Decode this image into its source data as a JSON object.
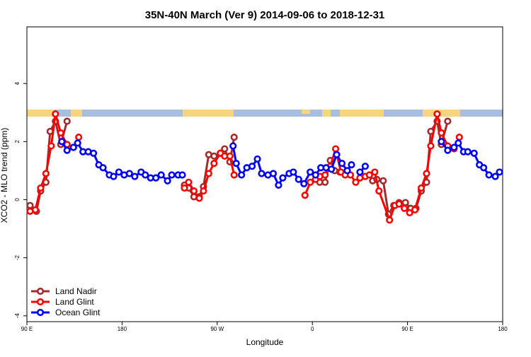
{
  "chart_data": {
    "type": "line",
    "title": "35N-40N March (Ver 9)   2014-09-06 to 2018-12-31",
    "xlabel": "Longitude",
    "ylabel": "XCO2 - MLO trend (ppm)",
    "xlim": [
      90,
      540
    ],
    "xticks": [
      {
        "value": 90,
        "label": "90 E"
      },
      {
        "value": 180,
        "label": "180"
      },
      {
        "value": 270,
        "label": "90 W"
      },
      {
        "value": 360,
        "label": "0"
      },
      {
        "value": 450,
        "label": "90 E"
      },
      {
        "value": 540,
        "label": "180"
      }
    ],
    "ylim": [
      -4.2,
      5.95
    ],
    "yticks": [
      -4,
      -2,
      0,
      2,
      4
    ],
    "legend": "lower left",
    "series": [
      {
        "name": "Land Nadir",
        "color": "#a52a2a",
        "x": [
          93,
          99,
          103,
          108,
          112,
          117,
          122,
          128,
          null,
          239,
          243,
          248,
          253,
          257,
          262,
          267,
          273,
          277,
          282,
          286,
          null,
          367,
          372,
          377,
          381,
          386,
          null,
          417,
          421,
          427,
          432,
          437,
          442,
          448,
          453,
          458,
          463,
          468,
          472,
          478,
          482,
          488
        ],
        "values": [
          -0.2,
          -0.4,
          0.3,
          0.6,
          2.35,
          2.7,
          1.9,
          2.7,
          null,
          0.5,
          0.4,
          0.1,
          0.1,
          0.45,
          1.55,
          1.5,
          1.6,
          1.75,
          1.3,
          2.15,
          null,
          0.6,
          0.6,
          1.35,
          1.0,
          0.95,
          null,
          0.65,
          0.7,
          0.65,
          -0.5,
          -0.2,
          -0.1,
          -0.1,
          -0.3,
          -0.3,
          0.3,
          0.6,
          2.35,
          2.7,
          1.9,
          2.7
        ]
      },
      {
        "name": "Land Glint",
        "color": "#ff0000",
        "x": [
          93,
          98,
          103,
          108,
          113,
          117,
          122,
          128,
          134,
          139,
          null,
          239,
          243,
          248,
          253,
          257,
          262,
          267,
          273,
          277,
          282,
          286,
          null,
          353,
          358,
          363,
          367,
          372,
          377,
          382,
          387,
          391,
          396,
          401,
          405,
          410,
          414,
          419,
          423,
          433,
          438,
          442,
          447,
          452,
          457,
          463,
          468,
          472,
          478,
          482,
          488,
          494,
          499
        ],
        "values": [
          -0.4,
          -0.35,
          0.4,
          0.9,
          1.85,
          2.95,
          2.3,
          1.9,
          1.8,
          2.15,
          null,
          0.4,
          0.6,
          0.3,
          0.05,
          0.3,
          0.9,
          1.25,
          1.6,
          1.5,
          1.5,
          0.85,
          null,
          0.15,
          0.6,
          0.7,
          0.8,
          0.85,
          1.15,
          1.75,
          0.95,
          0.85,
          0.85,
          0.6,
          0.75,
          0.8,
          0.85,
          0.95,
          0.3,
          -0.7,
          -0.2,
          -0.15,
          -0.3,
          -0.45,
          -0.35,
          0.4,
          0.9,
          1.85,
          2.95,
          2.3,
          1.85,
          1.75,
          2.15
        ]
      },
      {
        "name": "Ocean Glint",
        "color": "#0000ff",
        "x": [
          123,
          128,
          134,
          138,
          143,
          148,
          153,
          158,
          162,
          168,
          172,
          177,
          182,
          187,
          192,
          198,
          202,
          207,
          212,
          217,
          223,
          227,
          233,
          237,
          null,
          285,
          288,
          293,
          298,
          303,
          308,
          312,
          318,
          323,
          328,
          332,
          338,
          342,
          347,
          352,
          358,
          363,
          368,
          373,
          378,
          383,
          388,
          393,
          397,
          null,
          405,
          410,
          null,
          482,
          488,
          494,
          498,
          503,
          507,
          513,
          518,
          522,
          527,
          533,
          537
        ],
        "values": [
          2.0,
          1.7,
          1.8,
          1.95,
          1.65,
          1.65,
          1.6,
          1.2,
          1.1,
          0.85,
          0.8,
          0.95,
          0.85,
          0.9,
          0.8,
          0.95,
          0.85,
          0.75,
          0.75,
          0.85,
          0.65,
          0.85,
          0.85,
          0.85,
          null,
          1.85,
          1.25,
          0.85,
          1.1,
          1.15,
          1.4,
          0.9,
          0.85,
          0.9,
          0.5,
          0.75,
          0.9,
          0.95,
          0.7,
          0.55,
          0.95,
          0.85,
          1.1,
          1.1,
          1.05,
          1.55,
          1.25,
          1.0,
          1.2,
          null,
          0.95,
          1.15,
          null,
          2.0,
          1.7,
          1.8,
          1.95,
          1.65,
          1.65,
          1.6,
          1.2,
          1.1,
          0.85,
          0.8,
          0.95
        ]
      }
    ]
  }
}
